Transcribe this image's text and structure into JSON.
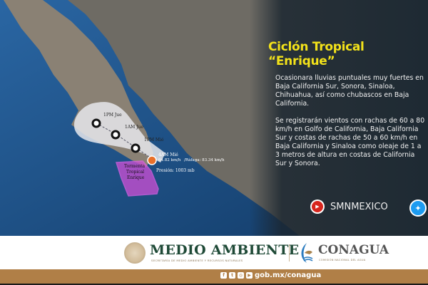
{
  "title": "Ciclón Tropical “Enrique”",
  "paragraphs": [
    "Ocasionara lluvias puntuales muy fuertes en Baja\nCalifornia Sur, Sonora, Sinaloa, Chihuahua,\nasí como chubascos en Baja California.",
    "Se registrarán vientos con rachas de 60 a 80 km/h en\nGolfo de California, Baja California Sur y costas de\nrachas de 50 a 60 km/h en Baja California y Sinaloa\ncomo oleaje de 1 a 3 metros de altura en costas de\nCalifornia Sur y Sonora."
  ],
  "map": {
    "forecast_points": [
      "1PM Jue",
      "1AM Jue",
      "1PM Mié"
    ],
    "current": {
      "time": "4AM Mié",
      "wind": "64.82 km/h",
      "gust": "/Ráfaga: 83.34 km/h",
      "pressure": "Presión: 1003 mb"
    },
    "storm_label": [
      "Tormenta",
      "Tropical",
      "Enrique"
    ],
    "colors": {
      "ocean": "#1d4f86",
      "cone": "#e6e8ec",
      "warning": "#d04fd6",
      "storm": "#e8702a"
    }
  },
  "social": {
    "youtube": "SMNMEXICO",
    "youtube_icon": "youtube-icon",
    "twitter_icon": "twitter-icon"
  },
  "footer": {
    "medio_ambiente": "MEDIO AMBIENTE",
    "medio_ambiente_sub": "SECRETARÍA DE MEDIO AMBIENTE Y RECURSOS NATURALES",
    "conagua": "CONAGUA",
    "conagua_sub": "COMISIÓN NACIONAL DEL AGUA",
    "url": "gob.mx/conagua",
    "colors": {
      "brown": "#b07f47",
      "green": "#1f4a37"
    }
  }
}
